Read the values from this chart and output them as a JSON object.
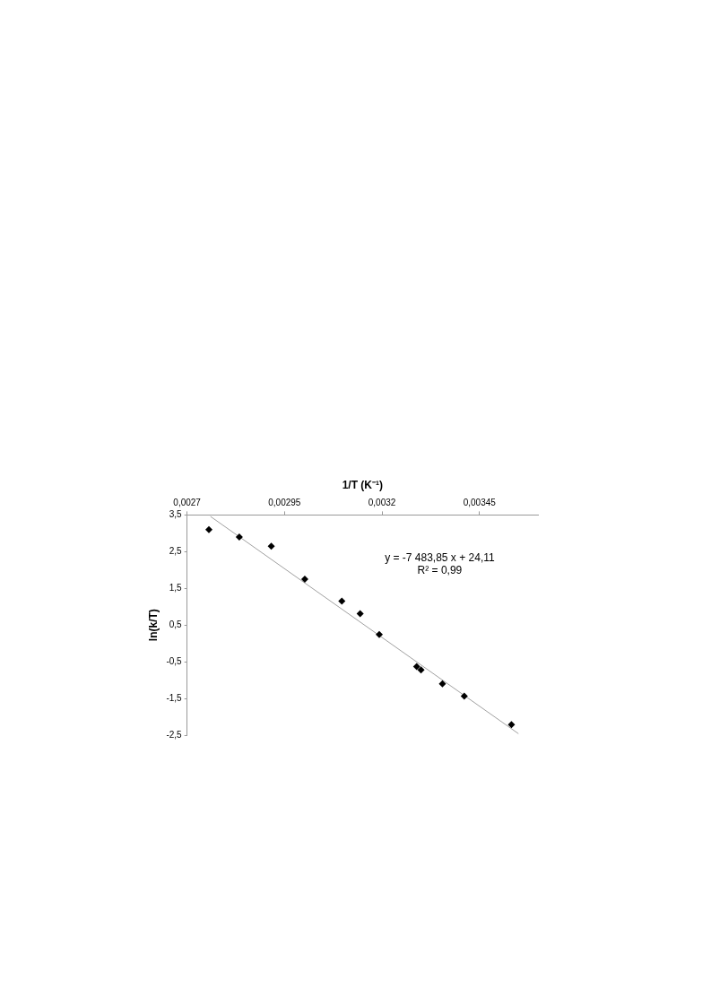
{
  "chart_data": {
    "type": "scatter",
    "xlabel": "1/T (K⁻¹)",
    "ylabel": "ln(k/T)",
    "xlim": [
      0.0027,
      0.0036
    ],
    "xticks": [
      {
        "value": 0.0027,
        "label": "0,0027"
      },
      {
        "value": 0.00295,
        "label": "0,00295"
      },
      {
        "value": 0.0032,
        "label": "0,0032"
      },
      {
        "value": 0.00345,
        "label": "0,00345"
      }
    ],
    "ylim": [
      -2.5,
      3.5
    ],
    "yticks": [
      {
        "value": -2.5,
        "label": "-2,5"
      },
      {
        "value": -1.5,
        "label": "-1,5"
      },
      {
        "value": -0.5,
        "label": "-0,5"
      },
      {
        "value": 0.5,
        "label": "0,5"
      },
      {
        "value": 1.5,
        "label": "1,5"
      },
      {
        "value": 2.5,
        "label": "2,5"
      },
      {
        "value": 3.5,
        "label": "3,5"
      }
    ],
    "grid": false,
    "legend": false,
    "marker": "diamond",
    "series": [
      {
        "color": "#000000",
        "x": [
          0.002756,
          0.002834,
          0.002916,
          0.003002,
          0.003097,
          0.003144,
          0.003193,
          0.003289,
          0.0033,
          0.003355,
          0.003411,
          0.003532
        ],
        "values": [
          3.1,
          2.9,
          2.65,
          1.75,
          1.15,
          0.81,
          0.24,
          -0.63,
          -0.72,
          -1.1,
          -1.44,
          -2.21
        ]
      },
      {
        "type": "line",
        "color": "#a0a0a0",
        "marker": "none",
        "x": [
          0.00276,
          0.00355
        ],
        "values": [
          3.46,
          -2.46
        ]
      }
    ],
    "annotations": [
      "y = -7 483,85 x + 24,11",
      "R² = 0,99"
    ]
  }
}
